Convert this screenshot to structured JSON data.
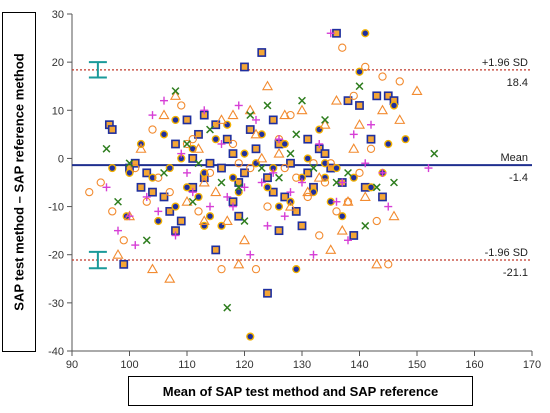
{
  "chart_data": {
    "type": "scatter",
    "title": "",
    "ylabel": "SAP test method – SAP reference method",
    "xlabel": "Mean of SAP test method and SAP reference",
    "xlim": [
      90,
      170
    ],
    "ylim": [
      -40,
      30
    ],
    "xticks": [
      90,
      100,
      110,
      120,
      130,
      140,
      150,
      160,
      170
    ],
    "yticks": [
      -40,
      -30,
      -20,
      -10,
      0,
      10,
      20,
      30
    ],
    "grid": false,
    "lines": [
      {
        "name": "upper",
        "label_top": "+1.96 SD",
        "label_bottom": "18.4",
        "y": 18.4,
        "style": "dotted",
        "color": "#c0392b"
      },
      {
        "name": "mean",
        "label_top": "Mean",
        "label_bottom": "-1.4",
        "y": -1.4,
        "style": "solid",
        "color": "#1f2f8f"
      },
      {
        "name": "lower",
        "label_top": "-1.96 SD",
        "label_bottom": "-21.1",
        "y": -21.1,
        "style": "dotted",
        "color": "#c0392b"
      }
    ],
    "error_bars": [
      {
        "x": 94.5,
        "center": 18.4,
        "low": 16.8,
        "high": 20.0,
        "color": "#1a9a9a"
      },
      {
        "x": 94.5,
        "center": -21.1,
        "low": -22.8,
        "high": -19.4,
        "color": "#1a9a9a"
      }
    ],
    "marker_styles": {
      "square": {
        "fill": "#f4a636",
        "stroke": "#1f2f9f"
      },
      "dot": {
        "fill": "#1f2f9f",
        "stroke": "#f2b100"
      },
      "circle": {
        "fill": "none",
        "stroke": "#f28b30"
      },
      "triangle": {
        "fill": "none",
        "stroke": "#f28b30"
      },
      "cross": {
        "stroke": "#2e7d1e"
      },
      "plus": {
        "stroke": "#d63fd6"
      }
    },
    "series": [
      {
        "marker": "square",
        "points": [
          [
            96.5,
            7
          ],
          [
            97,
            6
          ],
          [
            99,
            -22
          ],
          [
            100,
            -2
          ],
          [
            101,
            -1
          ],
          [
            103,
            -3
          ],
          [
            104,
            -7
          ],
          [
            106,
            -8
          ],
          [
            107,
            -11
          ],
          [
            108,
            3
          ],
          [
            109,
            -13
          ],
          [
            110,
            8
          ],
          [
            111,
            -6
          ],
          [
            112,
            5
          ],
          [
            113,
            -4
          ],
          [
            114,
            -1
          ],
          [
            115,
            7
          ],
          [
            116,
            -2
          ],
          [
            117,
            4
          ],
          [
            118,
            -9
          ],
          [
            119,
            -5
          ],
          [
            120,
            -3
          ],
          [
            121,
            6
          ],
          [
            122,
            2
          ],
          [
            123,
            22
          ],
          [
            124,
            -4
          ],
          [
            125,
            -7
          ],
          [
            126,
            3
          ],
          [
            127,
            -8
          ],
          [
            128,
            -1
          ],
          [
            129,
            -11
          ],
          [
            130,
            -14
          ],
          [
            131,
            -3
          ],
          [
            132,
            -6
          ],
          [
            133,
            2
          ],
          [
            134,
            1
          ],
          [
            135,
            -2
          ],
          [
            136,
            26
          ],
          [
            137,
            -5
          ],
          [
            138,
            12
          ],
          [
            139,
            -16
          ],
          [
            140,
            11
          ],
          [
            141,
            -6
          ],
          [
            142,
            4
          ],
          [
            143,
            13
          ],
          [
            144,
            -8
          ],
          [
            145,
            13
          ],
          [
            146,
            12
          ],
          [
            108,
            -15
          ],
          [
            111,
            0
          ],
          [
            115,
            -19
          ],
          [
            118,
            1
          ],
          [
            120,
            19
          ],
          [
            124,
            -28
          ],
          [
            125,
            8
          ],
          [
            119,
            -12
          ],
          [
            113,
            9
          ],
          [
            131,
            4
          ],
          [
            102,
            -6
          ],
          [
            126,
            -15
          ]
        ]
      },
      {
        "marker": "dot",
        "points": [
          [
            97,
            -2
          ],
          [
            99.5,
            -12
          ],
          [
            102,
            3
          ],
          [
            104,
            -4
          ],
          [
            105,
            -13
          ],
          [
            106,
            5
          ],
          [
            107,
            -2
          ],
          [
            108,
            -10
          ],
          [
            109,
            0
          ],
          [
            110,
            -6
          ],
          [
            111,
            2
          ],
          [
            112,
            -8
          ],
          [
            113,
            -3
          ],
          [
            114,
            -12
          ],
          [
            115,
            4
          ],
          [
            116,
            -14
          ],
          [
            117,
            7
          ],
          [
            118,
            -4
          ],
          [
            119,
            -7
          ],
          [
            120,
            1
          ],
          [
            121,
            -37
          ],
          [
            122,
            -1
          ],
          [
            123,
            5
          ],
          [
            124,
            -6
          ],
          [
            125,
            -2
          ],
          [
            127,
            3
          ],
          [
            128,
            -9
          ],
          [
            129,
            -23
          ],
          [
            130,
            -4
          ],
          [
            131,
            0
          ],
          [
            132,
            -7
          ],
          [
            133,
            6
          ],
          [
            134,
            -4
          ],
          [
            135,
            -9
          ],
          [
            136,
            -2
          ],
          [
            137,
            -12
          ],
          [
            139,
            -4
          ],
          [
            140,
            18
          ],
          [
            141,
            26
          ],
          [
            142,
            -6
          ],
          [
            144,
            -3
          ],
          [
            145,
            3
          ],
          [
            146,
            11
          ],
          [
            148,
            4
          ],
          [
            100,
            -3
          ],
          [
            108,
            8
          ],
          [
            113,
            -14
          ],
          [
            126,
            -10
          ],
          [
            134,
            -1
          ]
        ]
      },
      {
        "marker": "circle",
        "points": [
          [
            93,
            -7
          ],
          [
            95,
            -5
          ],
          [
            97,
            -11
          ],
          [
            99,
            -17
          ],
          [
            101,
            -2
          ],
          [
            103,
            -9
          ],
          [
            105,
            -4
          ],
          [
            107,
            -7
          ],
          [
            109,
            11
          ],
          [
            111,
            4
          ],
          [
            112,
            -11
          ],
          [
            114,
            -3
          ],
          [
            116,
            -23
          ],
          [
            118,
            3
          ],
          [
            119,
            -1
          ],
          [
            121,
            -2
          ],
          [
            122,
            -23
          ],
          [
            124,
            -10
          ],
          [
            126,
            4
          ],
          [
            127,
            -2
          ],
          [
            128,
            9
          ],
          [
            129,
            -4
          ],
          [
            131,
            -8
          ],
          [
            132,
            -1
          ],
          [
            133,
            -16
          ],
          [
            134,
            -5
          ],
          [
            135,
            -1
          ],
          [
            136,
            -11
          ],
          [
            137,
            23
          ],
          [
            138,
            -9
          ],
          [
            139,
            13
          ],
          [
            140,
            -3
          ],
          [
            141,
            19
          ],
          [
            142,
            2
          ],
          [
            143,
            -13
          ],
          [
            144,
            17
          ],
          [
            145,
            -22
          ],
          [
            147,
            16
          ],
          [
            104,
            6
          ],
          [
            110,
            3
          ]
        ]
      },
      {
        "marker": "triangle",
        "points": [
          [
            98,
            -20
          ],
          [
            100,
            -12
          ],
          [
            102,
            2
          ],
          [
            104,
            -23
          ],
          [
            106,
            9
          ],
          [
            108,
            13
          ],
          [
            110,
            -9
          ],
          [
            112,
            2
          ],
          [
            113,
            -5
          ],
          [
            115,
            -7
          ],
          [
            116,
            8
          ],
          [
            117,
            -13
          ],
          [
            118,
            9
          ],
          [
            119,
            -22
          ],
          [
            120,
            -17
          ],
          [
            121,
            10
          ],
          [
            122,
            5
          ],
          [
            123,
            0
          ],
          [
            124,
            15
          ],
          [
            126,
            1
          ],
          [
            128,
            -10
          ],
          [
            130,
            10
          ],
          [
            131,
            -7
          ],
          [
            133,
            -4
          ],
          [
            134,
            7
          ],
          [
            135,
            -19
          ],
          [
            136,
            12
          ],
          [
            137,
            -15
          ],
          [
            138,
            -9
          ],
          [
            139,
            2
          ],
          [
            140,
            7
          ],
          [
            141,
            -8
          ],
          [
            143,
            -22
          ],
          [
            144,
            10
          ],
          [
            146,
            -12
          ],
          [
            147,
            8
          ],
          [
            150,
            14
          ],
          [
            107,
            -25
          ],
          [
            113,
            -13
          ],
          [
            127,
            9
          ]
        ]
      },
      {
        "marker": "cross",
        "points": [
          [
            96,
            2
          ],
          [
            98,
            -9
          ],
          [
            100,
            -1
          ],
          [
            103,
            -17
          ],
          [
            106,
            -3
          ],
          [
            108,
            14
          ],
          [
            110,
            3
          ],
          [
            112,
            -1
          ],
          [
            114,
            6
          ],
          [
            116,
            -5
          ],
          [
            117,
            -31
          ],
          [
            119,
            -6
          ],
          [
            121,
            9
          ],
          [
            123,
            -2
          ],
          [
            124,
            11
          ],
          [
            126,
            -4
          ],
          [
            128,
            1
          ],
          [
            130,
            12
          ],
          [
            132,
            -2
          ],
          [
            134,
            8
          ],
          [
            136,
            -5
          ],
          [
            138,
            -3
          ],
          [
            140,
            15
          ],
          [
            143,
            -6
          ],
          [
            146,
            -5
          ],
          [
            153,
            1
          ],
          [
            111,
            -9
          ],
          [
            120,
            -13
          ],
          [
            129,
            5
          ],
          [
            141,
            -14
          ]
        ]
      },
      {
        "marker": "plus",
        "points": [
          [
            96,
            -6
          ],
          [
            98,
            -15
          ],
          [
            100,
            -12
          ],
          [
            101,
            -18
          ],
          [
            103,
            -8
          ],
          [
            104,
            9
          ],
          [
            105,
            -11
          ],
          [
            106,
            12
          ],
          [
            108,
            -16
          ],
          [
            109,
            1
          ],
          [
            110,
            -3
          ],
          [
            111,
            -7
          ],
          [
            113,
            10
          ],
          [
            114,
            -10
          ],
          [
            116,
            3
          ],
          [
            117,
            -8
          ],
          [
            118,
            -10
          ],
          [
            119,
            11
          ],
          [
            120,
            -6
          ],
          [
            121,
            -20
          ],
          [
            122,
            8
          ],
          [
            123,
            -5
          ],
          [
            124,
            -14
          ],
          [
            125,
            -3
          ],
          [
            126,
            4
          ],
          [
            127,
            -12
          ],
          [
            128,
            -7
          ],
          [
            130,
            -5
          ],
          [
            132,
            -20
          ],
          [
            133,
            3
          ],
          [
            135,
            26
          ],
          [
            136,
            -9
          ],
          [
            137,
            -5
          ],
          [
            138,
            -17
          ],
          [
            139,
            5
          ],
          [
            141,
            -1
          ],
          [
            142,
            7
          ],
          [
            144,
            -3
          ],
          [
            145,
            -10
          ],
          [
            152,
            -2
          ]
        ]
      }
    ]
  }
}
